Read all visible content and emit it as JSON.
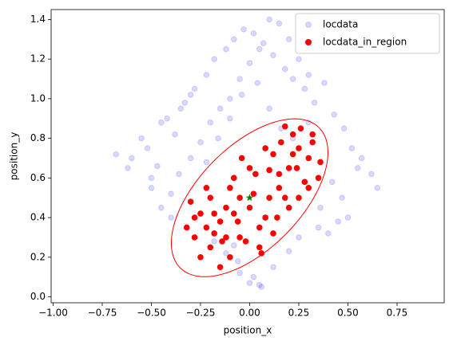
{
  "chart_data": {
    "type": "scatter",
    "xlabel": "position_x",
    "ylabel": "position_y",
    "xlim": [
      -1.01,
      0.99
    ],
    "ylim": [
      -0.03,
      1.45
    ],
    "xticks": [
      {
        "value": -1,
        "label": "−1.00"
      },
      {
        "value": -0.75,
        "label": "−0.75"
      },
      {
        "value": -0.5,
        "label": "−0.50"
      },
      {
        "value": -0.25,
        "label": "−0.25"
      },
      {
        "value": 0,
        "label": "0.00"
      },
      {
        "value": 0.25,
        "label": "0.25"
      },
      {
        "value": 0.5,
        "label": "0.50"
      },
      {
        "value": 0.75,
        "label": "0.75"
      }
    ],
    "yticks": [
      {
        "value": 0,
        "label": "0.0"
      },
      0.2,
      0.4,
      0.6,
      0.8,
      {
        "value": 1,
        "label": "1.0"
      },
      1.2,
      1.4
    ],
    "legend": "upper right",
    "series": [
      {
        "name": "locdata",
        "color": "#0000ff",
        "opacity": 0.15,
        "x": [
          -0.68,
          -0.62,
          -0.55,
          -0.5,
          -0.45,
          -0.4,
          -0.35,
          -0.3,
          -0.6,
          -0.52,
          -0.47,
          -0.42,
          -0.38,
          -0.33,
          -0.28,
          -0.22,
          -0.18,
          -0.12,
          -0.08,
          -0.03,
          0.02,
          0.07,
          0.12,
          0.18,
          0.22,
          0.28,
          0.33,
          0.38,
          0.43,
          0.48,
          0.52,
          0.57,
          0.62,
          0.65,
          -0.25,
          -0.2,
          -0.15,
          -0.1,
          -0.05,
          0,
          0.05,
          0.1,
          0.15,
          0.2,
          0.25,
          0.3,
          -0.3,
          -0.22,
          -0.16,
          -0.1,
          -0.04,
          0.04,
          0.1,
          0.16,
          0.22,
          0.3,
          -0.12,
          -0.06,
          0.02,
          0.06,
          -0.18,
          0.12,
          -0.36,
          0.36,
          0.42,
          0.47,
          0.55,
          0.5,
          0.45,
          0.4,
          -0.45,
          -0.4,
          -0.5,
          -0.05,
          0,
          0.05,
          -0.08,
          0.2,
          0.25,
          0.35
        ],
        "values": [
          0.72,
          0.65,
          0.8,
          0.6,
          0.88,
          0.52,
          0.95,
          1.02,
          0.7,
          0.75,
          0.66,
          0.9,
          0.82,
          0.98,
          1.05,
          1.12,
          1.2,
          1.25,
          1.3,
          1.35,
          1.33,
          1.28,
          1.22,
          1.15,
          1.1,
          1.05,
          0.98,
          1.08,
          0.92,
          0.85,
          0.75,
          0.7,
          0.62,
          0.55,
          0.78,
          0.88,
          0.95,
          1.0,
          1.1,
          1.18,
          1.25,
          1.4,
          1.38,
          1.3,
          1.2,
          1.12,
          0.7,
          0.68,
          0.8,
          0.9,
          1.02,
          1.08,
          0.95,
          0.85,
          0.8,
          0.88,
          0.22,
          0.18,
          0.1,
          0.05,
          0.28,
          0.15,
          0.62,
          0.45,
          0.58,
          0.5,
          0.65,
          0.4,
          0.38,
          0.32,
          0.45,
          0.4,
          0.55,
          0.12,
          0.07,
          0.06,
          0.26,
          0.23,
          0.3,
          0.35
        ]
      },
      {
        "name": "locdata_in_region",
        "color": "#ff0000",
        "opacity": 1,
        "x": [
          -0.32,
          -0.28,
          -0.25,
          -0.2,
          -0.15,
          -0.1,
          -0.05,
          0,
          0.05,
          0.1,
          0.15,
          0.2,
          0.25,
          0.3,
          0.35,
          -0.3,
          -0.22,
          -0.18,
          -0.12,
          -0.08,
          -0.02,
          0.03,
          0.08,
          0.12,
          0.18,
          0.22,
          0.28,
          0.32,
          -0.25,
          -0.2,
          -0.14,
          -0.06,
          0.02,
          0.1,
          0.16,
          0.24,
          0.3,
          0.36,
          -0.18,
          -0.1,
          -0.04,
          0.06,
          0.12,
          0.2,
          0.26,
          -0.15,
          -0.05,
          0.05,
          0.15,
          0.25,
          -0.28,
          -0.12,
          0,
          0.14,
          0.32,
          0.22,
          -0.22,
          0.08,
          0.18,
          -0.08
        ],
        "values": [
          0.35,
          0.3,
          0.42,
          0.25,
          0.38,
          0.2,
          0.3,
          0.45,
          0.35,
          0.5,
          0.55,
          0.65,
          0.75,
          0.7,
          0.6,
          0.48,
          0.55,
          0.32,
          0.45,
          0.6,
          0.28,
          0.62,
          0.4,
          0.72,
          0.5,
          0.82,
          0.58,
          0.82,
          0.2,
          0.5,
          0.28,
          0.38,
          0.52,
          0.64,
          0.78,
          0.65,
          0.55,
          0.68,
          0.42,
          0.55,
          0.7,
          0.22,
          0.32,
          0.45,
          0.85,
          0.15,
          0.5,
          0.25,
          0.62,
          0.5,
          0.4,
          0.3,
          0.65,
          0.4,
          0.78,
          0.72,
          0.35,
          0.75,
          0.86,
          0.42
        ]
      }
    ],
    "region": {
      "center_x": 0,
      "center_y": 0.5,
      "width": 1.0,
      "height": 0.52,
      "angle": 45,
      "color": "#ff0000"
    },
    "reference_point": {
      "x": 0,
      "y": 0.5,
      "color": "#008000"
    }
  }
}
